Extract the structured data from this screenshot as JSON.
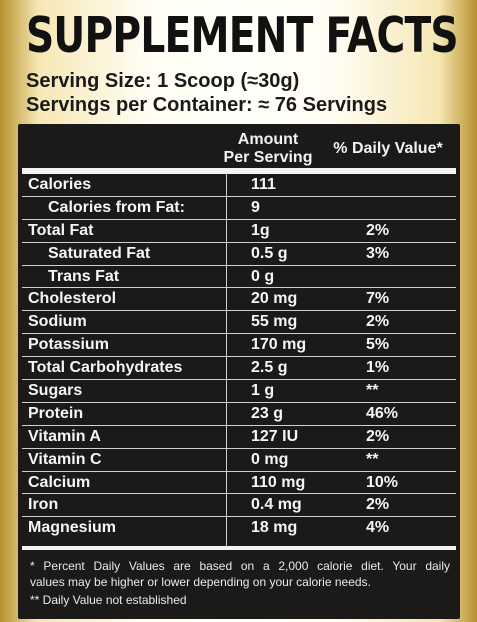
{
  "title": "SUPPLEMENT FACTS",
  "serving_size": "Serving Size:  1 Scoop (≈30g)",
  "servings_per_container": "Servings per Container:  ≈ 76 Servings",
  "headers": {
    "amount_line1": "Amount",
    "amount_line2": "Per Serving",
    "daily_value": "% Daily Value*"
  },
  "rows": [
    {
      "label": "Calories",
      "amount": "111",
      "dv": "",
      "indent": false
    },
    {
      "label": "Calories from Fat:",
      "amount": "9",
      "dv": "",
      "indent": true
    },
    {
      "label": "Total Fat",
      "amount": "1g",
      "dv": "2%",
      "indent": false
    },
    {
      "label": "Saturated Fat",
      "amount": "0.5 g",
      "dv": "3%",
      "indent": true
    },
    {
      "label": "Trans Fat",
      "amount": "0 g",
      "dv": "",
      "indent": true
    },
    {
      "label": "Cholesterol",
      "amount": "20 mg",
      "dv": "7%",
      "indent": false
    },
    {
      "label": "Sodium",
      "amount": "55 mg",
      "dv": "2%",
      "indent": false
    },
    {
      "label": "Potassium",
      "amount": "170 mg",
      "dv": "5%",
      "indent": false
    },
    {
      "label": "Total Carbohydrates",
      "amount": "2.5 g",
      "dv": "1%",
      "indent": false
    },
    {
      "label": "Sugars",
      "amount": "1 g",
      "dv": "**",
      "indent": false
    },
    {
      "label": "Protein",
      "amount": "23 g",
      "dv": "46%",
      "indent": false
    },
    {
      "label": "Vitamin A",
      "amount": "127 IU",
      "dv": "2%",
      "indent": false
    },
    {
      "label": "Vitamin C",
      "amount": "0 mg",
      "dv": "**",
      "indent": false
    },
    {
      "label": "Calcium",
      "amount": "110 mg",
      "dv": "10%",
      "indent": false
    },
    {
      "label": "Iron",
      "amount": "0.4 mg",
      "dv": "2%",
      "indent": false
    },
    {
      "label": "Magnesium",
      "amount": "18 mg",
      "dv": "4%",
      "indent": false
    }
  ],
  "footnotes": {
    "line1": "* Percent Daily Values are based on a 2,000 calorie diet. Your daily",
    "line2": "values may be higher or lower depending on your calorie needs.",
    "line3": "** Daily Value not established"
  },
  "colors": {
    "panel_bg": "#1b1a18",
    "gold": "#b8912e",
    "text_light": "#f5f5f5",
    "title": "#111111"
  }
}
